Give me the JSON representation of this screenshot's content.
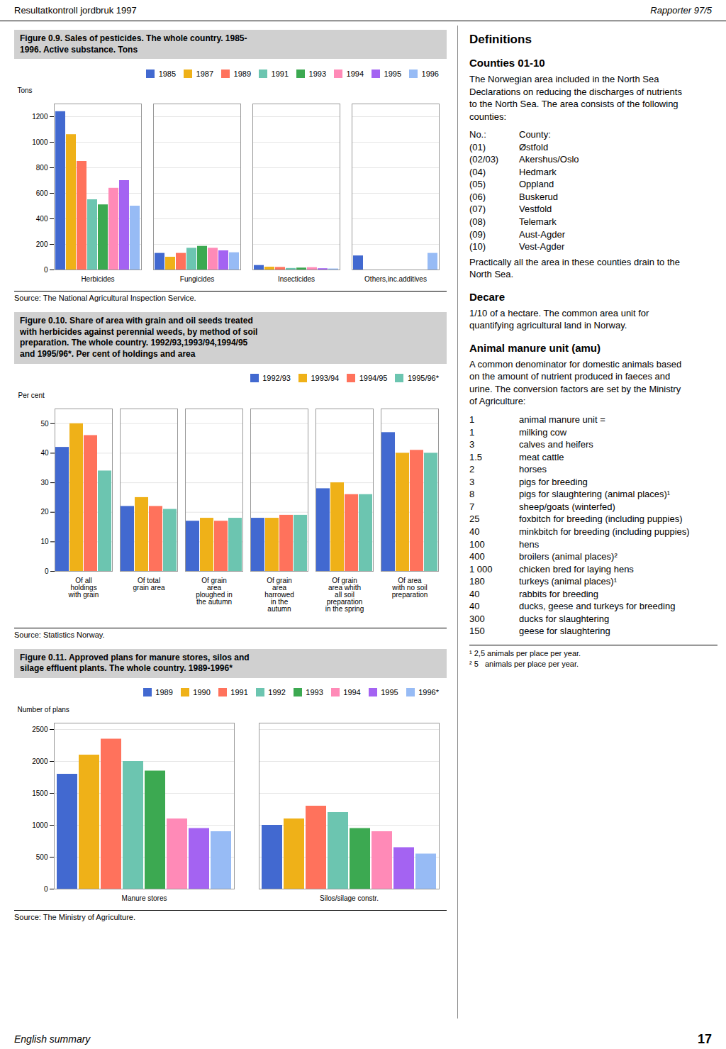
{
  "page": {
    "header_left": "Resultatkontroll jordbruk 1997",
    "header_right": "Rapporter 97/5",
    "footer_left": "English summary",
    "page_number": "17"
  },
  "chart_data": [
    {
      "type": "bar",
      "title": "Figure 0.9. Sales of pesticides. The whole country. 1985-\n1996. Active substance. Tons",
      "ylabel": "Tons",
      "caption": "Source: The National Agricultural Inspection Service.",
      "categories": [
        "Herbicides",
        "Fungicides",
        "Insecticides",
        "Others,inc.additives"
      ],
      "series": [
        {
          "name": "1985",
          "values": [
            1240,
            130,
            35,
            110
          ]
        },
        {
          "name": "1987",
          "values": [
            1060,
            100,
            22,
            0
          ]
        },
        {
          "name": "1989",
          "values": [
            850,
            130,
            20,
            0
          ]
        },
        {
          "name": "1991",
          "values": [
            550,
            170,
            12,
            0
          ]
        },
        {
          "name": "1993",
          "values": [
            510,
            185,
            15,
            0
          ]
        },
        {
          "name": "1994",
          "values": [
            640,
            170,
            18,
            0
          ]
        },
        {
          "name": "1995",
          "values": [
            700,
            150,
            10,
            0
          ]
        },
        {
          "name": "1996",
          "values": [
            500,
            135,
            8,
            130
          ]
        }
      ],
      "ylim": [
        0,
        1300
      ],
      "yticks": [
        0,
        200,
        400,
        600,
        800,
        1000,
        1200
      ],
      "grid": true,
      "legend": "upper right"
    },
    {
      "type": "bar",
      "title": "Figure 0.10. Share of area with grain and oil seeds treated\nwith herbicides against perennial weeds, by method of soil\npreparation. The whole country. 1992/93,1993/94,1994/95\nand 1995/96*. Per cent of holdings and area",
      "ylabel": "Per cent",
      "caption": "Source: Statistics Norway.",
      "categories": [
        "Of all\nholdings\nwith grain",
        "Of total\ngrain area",
        "Of grain\narea\nploughed in\nthe autumn",
        "Of grain\narea\nharrowed\nin the\nautumn",
        "Of grain\narea whith\nall soil\npreparation\nin the spring",
        "Of area\nwith no soil\npreparation"
      ],
      "series": [
        {
          "name": "1992/93",
          "values": [
            42,
            22,
            17,
            18,
            28,
            47
          ]
        },
        {
          "name": "1993/94",
          "values": [
            50,
            25,
            18,
            18,
            30,
            40
          ]
        },
        {
          "name": "1994/95",
          "values": [
            46,
            22,
            17,
            19,
            26,
            41
          ]
        },
        {
          "name": "1995/96*",
          "values": [
            34,
            21,
            18,
            19,
            26,
            40
          ]
        }
      ],
      "ylim": [
        0,
        55
      ],
      "yticks": [
        0,
        10,
        20,
        30,
        40,
        50
      ],
      "grid": true,
      "legend": "upper right"
    },
    {
      "type": "bar",
      "title": "Figure 0.11.  Approved plans for manure stores, silos and\nsilage effluent plants. The whole country. 1989-1996*",
      "ylabel": "Number of plans",
      "caption": "Source: The Ministry of Agriculture.",
      "categories": [
        "Manure stores",
        "Silos/silage constr."
      ],
      "series": [
        {
          "name": "1989",
          "values": [
            1800,
            1000
          ]
        },
        {
          "name": "1990",
          "values": [
            2100,
            1100
          ]
        },
        {
          "name": "1991",
          "values": [
            2350,
            1300
          ]
        },
        {
          "name": "1992",
          "values": [
            2000,
            1200
          ]
        },
        {
          "name": "1993",
          "values": [
            1850,
            950
          ]
        },
        {
          "name": "1994",
          "values": [
            1100,
            900
          ]
        },
        {
          "name": "1995",
          "values": [
            950,
            650
          ]
        },
        {
          "name": "1996*",
          "values": [
            900,
            550
          ]
        }
      ],
      "ylim": [
        0,
        2600
      ],
      "yticks": [
        0,
        500,
        1000,
        1500,
        2000,
        2500
      ],
      "grid": true,
      "legend": "upper right"
    }
  ],
  "definitions": {
    "title": "Definitions",
    "sections": [
      {
        "heading": "Counties 01-10",
        "items": [
          "The Norwegian area included in the North Sea\nDeclarations on reducing the discharges of nutrients\nto the North Sea. The area consists of the following\ncounties:",
          [
            "No.:",
            "County:"
          ],
          [
            "(01)",
            "Østfold"
          ],
          [
            "(02/03)",
            "Akershus/Oslo"
          ],
          [
            "(04)",
            "Hedmark"
          ],
          [
            "(05)",
            "Oppland"
          ],
          [
            "(06)",
            "Buskerud"
          ],
          [
            "(07)",
            "Vestfold"
          ],
          [
            "(08)",
            "Telemark"
          ],
          [
            "(09)",
            "Aust-Agder"
          ],
          [
            "(10)",
            "Vest-Agder"
          ],
          "Practically all the area in these counties drain to the\nNorth Sea."
        ]
      },
      {
        "heading": "Decare",
        "items": [
          "1/10 of a hectare. The common area unit for\nquantifying agricultural land in Norway."
        ]
      },
      {
        "heading": "Animal manure unit (amu)",
        "items": [
          "A common denominator for domestic animals based\non the amount of nutrient produced in faeces and\nurine. The conversion factors are set by the Ministry\nof Agriculture:",
          [
            "1",
            "animal manure unit ="
          ],
          [
            "1",
            "milking cow"
          ],
          [
            "3",
            "calves and heifers"
          ],
          [
            "1.5",
            "meat cattle"
          ],
          [
            "2",
            "horses"
          ],
          [
            "3",
            "pigs for breeding"
          ],
          [
            "8",
            "pigs for slaughtering (animal places)¹"
          ],
          [
            "7",
            "sheep/goats (winterfed)"
          ],
          [
            "25",
            "foxbitch for breeding (including puppies)"
          ],
          [
            "40",
            "minkbitch for breeding (including puppies)"
          ],
          [
            "100",
            "hens"
          ],
          [
            "400",
            "broilers (animal places)²"
          ],
          [
            "1 000",
            "chicken bred for laying hens"
          ],
          [
            "180",
            "turkeys (animal places)¹"
          ],
          [
            "40",
            "rabbits for breeding"
          ],
          [
            "40",
            "ducks, geese and turkeys for breeding"
          ],
          [
            "300",
            "ducks for slaughtering"
          ],
          [
            "150",
            "geese for slaughtering"
          ]
        ]
      }
    ],
    "footnotes": [
      "¹ 2,5 animals per place per year.",
      "² 5   animals per place per year."
    ]
  }
}
